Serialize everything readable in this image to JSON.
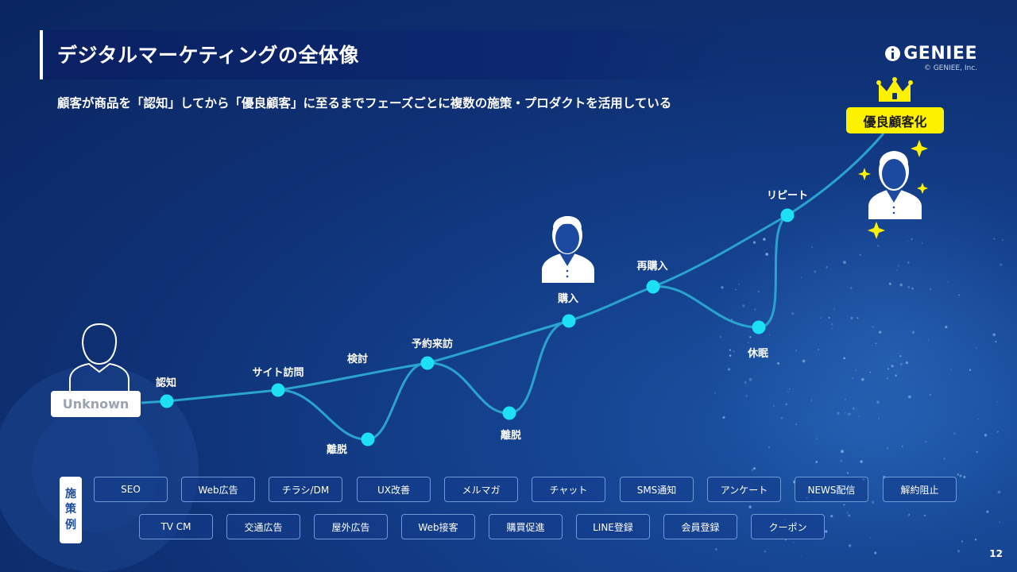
{
  "header": {
    "title": "デジタルマーケティングの全体像",
    "subtitle": "顧客が商品を「認知」してから「優良顧客」に至るまでフェーズごとに複数の施策・プロダクトを活用している",
    "logo_text": "GENIEE",
    "logo_copyright": "© GENIEE, Inc."
  },
  "journey": {
    "start_label": "Unknown",
    "goal_label": "優良顧客化",
    "stages": {
      "awareness": "認知",
      "site_visit": "サイト訪問",
      "consider": "検討",
      "churn1": "離脱",
      "reservation": "予約来訪",
      "churn2": "離脱",
      "purchase": "購入",
      "repurchase": "再購入",
      "dormant": "休眠",
      "repeat": "リピート"
    }
  },
  "measures": {
    "label_chars": [
      "施",
      "策",
      "例"
    ],
    "row1": [
      "SEO",
      "Web広告",
      "チラシ/DM",
      "UX改善",
      "メルマガ",
      "チャット",
      "SMS通知",
      "アンケート",
      "NEWS配信",
      "解約阻止"
    ],
    "row2": [
      "TV CM",
      "交通広告",
      "屋外広告",
      "Web接客",
      "購買促進",
      "LINE登録",
      "会員登録",
      "クーポン"
    ]
  },
  "page_number": "12",
  "colors": {
    "accent_node": "#1ee0f5",
    "path_line": "#2aa3cf",
    "goal_yellow": "#fff200"
  }
}
